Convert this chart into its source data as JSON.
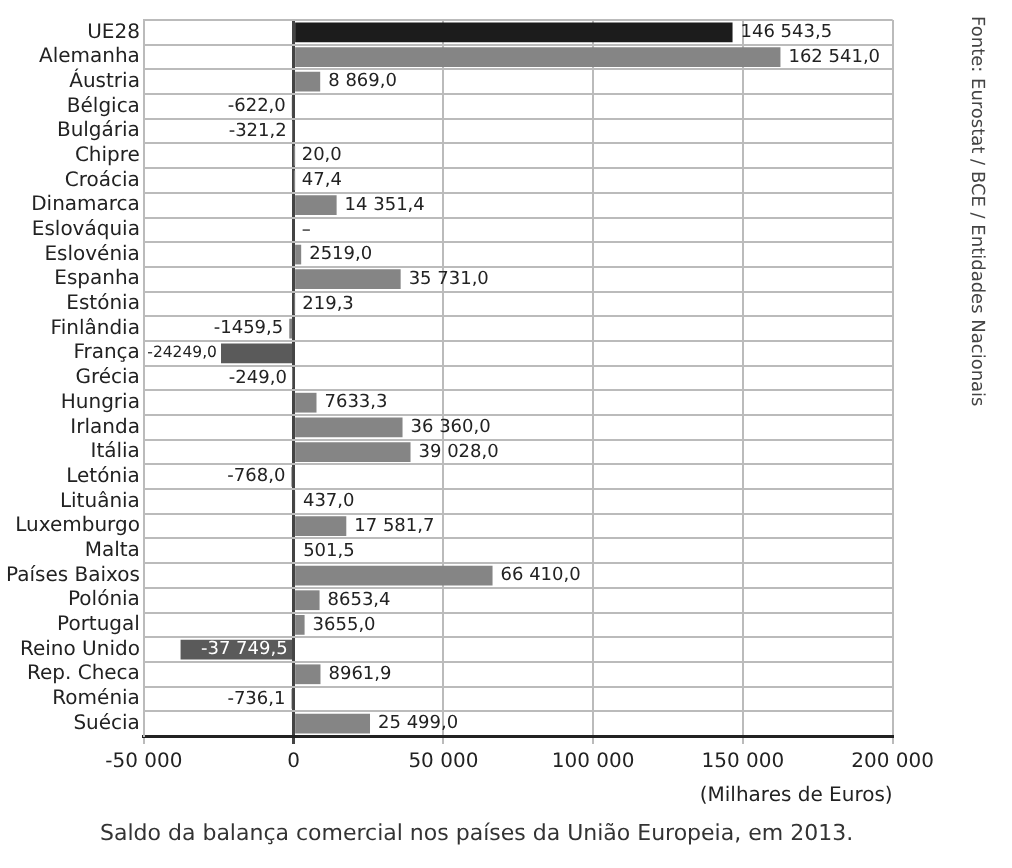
{
  "chart_data": {
    "type": "bar",
    "orientation": "horizontal",
    "categories": [
      "UE28",
      "Alemanha",
      "Áustria",
      "Bélgica",
      "Bulgária",
      "Chipre",
      "Croácia",
      "Dinamarca",
      "Eslováquia",
      "Eslovénia",
      "Espanha",
      "Estónia",
      "Finlândia",
      "França",
      "Grécia",
      "Hungria",
      "Irlanda",
      "Itália",
      "Letónia",
      "Lituânia",
      "Luxemburgo",
      "Malta",
      "Países Baixos",
      "Polónia",
      "Portugal",
      "Reino Unido",
      "Rep. Checa",
      "Roménia",
      "Suécia"
    ],
    "values": [
      146543.5,
      162541.0,
      8869.0,
      -622.0,
      -321.2,
      20.0,
      47.4,
      14351.4,
      null,
      2519.0,
      35731.0,
      219.3,
      -1459.5,
      -24249.0,
      -249.0,
      7633.3,
      36360.0,
      39028.0,
      -768.0,
      437.0,
      17581.7,
      501.5,
      66410.0,
      8653.4,
      3655.0,
      -37749.5,
      8961.9,
      -736.1,
      25499.0
    ],
    "value_labels": [
      "146 543,5",
      "162 541,0",
      "8 869,0",
      "-622,0",
      "-321,2",
      "20,0",
      "47,4",
      "14 351,4",
      "–",
      "2519,0",
      "35 731,0",
      "219,3",
      "-1459,5",
      "-24249,0",
      "-249,0",
      "7633,3",
      "36 360,0",
      "39 028,0",
      "-768,0",
      "437,0",
      "17 581,7",
      "501,5",
      "66 410,0",
      "8653,4",
      "3655,0",
      "-37 749,5",
      "8961,9",
      "-736,1",
      "25 499,0"
    ],
    "colors": [
      "#1c1c1c",
      "#858585",
      "#858585",
      "#858585",
      "#858585",
      "#858585",
      "#858585",
      "#858585",
      "#858585",
      "#858585",
      "#858585",
      "#858585",
      "#858585",
      "#5a5a5a",
      "#858585",
      "#858585",
      "#858585",
      "#858585",
      "#858585",
      "#858585",
      "#858585",
      "#858585",
      "#858585",
      "#858585",
      "#858585",
      "#5a5a5a",
      "#858585",
      "#858585",
      "#858585"
    ],
    "xlim": [
      -50000,
      200000
    ],
    "xticks": [
      {
        "value": -50000,
        "label": "-50 000"
      },
      0,
      {
        "value": 50000,
        "label": "50 000"
      },
      {
        "value": 100000,
        "label": "100 000"
      },
      {
        "value": 150000,
        "label": "150 000"
      },
      {
        "value": 200000,
        "label": "200 000"
      }
    ],
    "xlabel": "(Milhares de Euros)",
    "grid": true,
    "legend": false,
    "annotations": [
      "Saldo da balança comercial nos países da União Europeia, em 2013.",
      "Fonte: Eurostat / BCE / Entidades Nacionais"
    ]
  }
}
